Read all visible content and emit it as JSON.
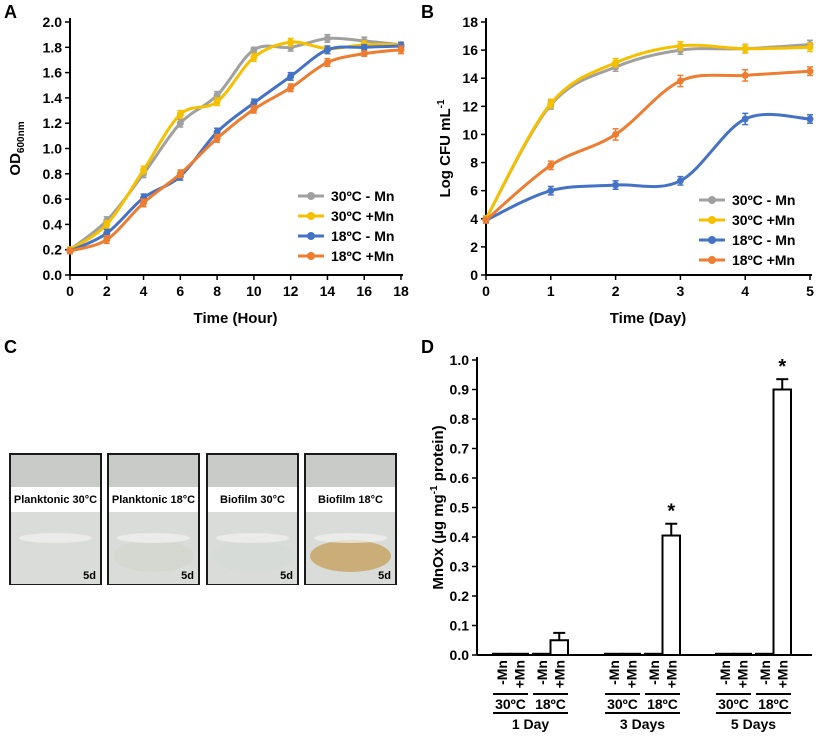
{
  "panels": {
    "A": "A",
    "B": "B",
    "C": "C",
    "D": "D"
  },
  "chart_data": [
    {
      "panel": "A",
      "type": "line",
      "xlabel": "Time (Hour)",
      "ylabel_main": "OD",
      "ylabel_sub": "600nm",
      "x": [
        0,
        2,
        4,
        6,
        8,
        10,
        12,
        14,
        16,
        18
      ],
      "xlim": [
        0,
        18
      ],
      "ylim": [
        0.0,
        2.0
      ],
      "xticks": [
        "0",
        "2",
        "4",
        "6",
        "8",
        "10",
        "12",
        "14",
        "16",
        "18"
      ],
      "yticks": [
        "0.0",
        "0.2",
        "0.4",
        "0.6",
        "0.8",
        "1.0",
        "1.2",
        "1.4",
        "1.6",
        "1.8",
        "2.0"
      ],
      "legend": [
        "30ºC - Mn",
        "30ºC +Mn",
        "18ºC - Mn",
        "18ºC +Mn"
      ],
      "legend_position": "bottom-right",
      "series": [
        {
          "name": "30ºC - Mn",
          "color": "#a0a0a0",
          "values": [
            0.2,
            0.43,
            0.8,
            1.2,
            1.42,
            1.78,
            1.8,
            1.87,
            1.85,
            1.82
          ],
          "err": [
            0.02,
            0.03,
            0.03,
            0.03,
            0.03,
            0.02,
            0.03,
            0.03,
            0.03,
            0.02
          ]
        },
        {
          "name": "30ºC +Mn",
          "color": "#f5c000",
          "values": [
            0.2,
            0.4,
            0.83,
            1.27,
            1.37,
            1.72,
            1.84,
            1.79,
            1.82,
            1.82
          ],
          "err": [
            0.02,
            0.03,
            0.03,
            0.03,
            0.03,
            0.03,
            0.03,
            0.02,
            0.03,
            0.02
          ]
        },
        {
          "name": "18ºC - Mn",
          "color": "#4472c4",
          "values": [
            0.19,
            0.33,
            0.61,
            0.78,
            1.13,
            1.36,
            1.57,
            1.78,
            1.8,
            1.81
          ],
          "err": [
            0.02,
            0.03,
            0.03,
            0.03,
            0.03,
            0.03,
            0.03,
            0.03,
            0.02,
            0.03
          ]
        },
        {
          "name": "18ºC +Mn",
          "color": "#ed7d31",
          "values": [
            0.19,
            0.28,
            0.57,
            0.8,
            1.08,
            1.31,
            1.48,
            1.68,
            1.75,
            1.78
          ],
          "err": [
            0.02,
            0.03,
            0.03,
            0.03,
            0.03,
            0.03,
            0.03,
            0.03,
            0.02,
            0.03
          ]
        }
      ]
    },
    {
      "panel": "B",
      "type": "line",
      "xlabel": "Time (Day)",
      "ylabel_main": "Log CFU mL",
      "ylabel_sup": "-1",
      "x": [
        0,
        1,
        2,
        3,
        4,
        5
      ],
      "xlim": [
        0,
        5
      ],
      "ylim": [
        0,
        18
      ],
      "xticks": [
        "0",
        "1",
        "2",
        "3",
        "4",
        "5"
      ],
      "yticks": [
        "0",
        "2",
        "4",
        "6",
        "8",
        "10",
        "12",
        "14",
        "16",
        "18"
      ],
      "legend": [
        "30ºC - Mn",
        "30ºC +Mn",
        "18ºC - Mn",
        "18ºC +Mn"
      ],
      "legend_position": "bottom-right",
      "series": [
        {
          "name": "30ºC - Mn",
          "color": "#a0a0a0",
          "values": [
            4.0,
            12.1,
            14.8,
            16.0,
            16.1,
            16.4
          ],
          "err": [
            0.2,
            0.3,
            0.3,
            0.3,
            0.3,
            0.3
          ]
        },
        {
          "name": "30ºC +Mn",
          "color": "#f5c000",
          "values": [
            4.0,
            12.2,
            15.1,
            16.3,
            16.1,
            16.2
          ],
          "err": [
            0.2,
            0.3,
            0.3,
            0.3,
            0.3,
            0.3
          ]
        },
        {
          "name": "18ºC - Mn",
          "color": "#4472c4",
          "values": [
            3.9,
            6.0,
            6.4,
            6.7,
            11.1,
            11.1
          ],
          "err": [
            0.2,
            0.3,
            0.3,
            0.3,
            0.4,
            0.3
          ]
        },
        {
          "name": "18ºC +Mn",
          "color": "#ed7d31",
          "values": [
            3.9,
            7.8,
            10.0,
            13.8,
            14.2,
            14.5
          ],
          "err": [
            0.2,
            0.3,
            0.4,
            0.4,
            0.4,
            0.3
          ]
        }
      ]
    },
    {
      "panel": "D",
      "type": "bar",
      "ylabel_pre": "MnOx (",
      "ylabel_mu": "µ",
      "ylabel_mid": "g mg",
      "ylabel_sup": "-1",
      "ylabel_post": " protein)",
      "ylim": [
        0.0,
        1.0
      ],
      "yticks": [
        "0.0",
        "0.1",
        "0.2",
        "0.3",
        "0.4",
        "0.5",
        "0.6",
        "0.7",
        "0.8",
        "0.9",
        "1.0"
      ],
      "significance_mark": "*",
      "groups": [
        {
          "label": "1 Day",
          "temps": [
            {
              "label": "30ºC",
              "bars": [
                {
                  "label": "-Mn",
                  "value": 0.0,
                  "err": 0
                },
                {
                  "label": "+Mn",
                  "value": 0.0,
                  "err": 0
                }
              ]
            },
            {
              "label": "18ºC",
              "bars": [
                {
                  "label": "-Mn",
                  "value": 0.0,
                  "err": 0
                },
                {
                  "label": "+Mn",
                  "value": 0.05,
                  "err": 0.025
                }
              ]
            }
          ]
        },
        {
          "label": "3 Days",
          "temps": [
            {
              "label": "30ºC",
              "bars": [
                {
                  "label": "-Mn",
                  "value": 0.0,
                  "err": 0
                },
                {
                  "label": "+Mn",
                  "value": 0.0,
                  "err": 0
                }
              ]
            },
            {
              "label": "18ºC",
              "bars": [
                {
                  "label": "-Mn",
                  "value": 0.0,
                  "err": 0
                },
                {
                  "label": "+Mn",
                  "value": 0.405,
                  "err": 0.04,
                  "sig": true
                }
              ]
            }
          ]
        },
        {
          "label": "5 Days",
          "temps": [
            {
              "label": "30ºC",
              "bars": [
                {
                  "label": "-Mn",
                  "value": 0.0,
                  "err": 0
                },
                {
                  "label": "+Mn",
                  "value": 0.0,
                  "err": 0
                }
              ]
            },
            {
              "label": "18ºC",
              "bars": [
                {
                  "label": "-Mn",
                  "value": 0.0,
                  "err": 0
                },
                {
                  "label": "+Mn",
                  "value": 0.9,
                  "err": 0.035,
                  "sig": true
                }
              ]
            }
          ]
        }
      ]
    }
  ],
  "photo": {
    "panel": "C",
    "day_label": "5d",
    "items": [
      {
        "caption": "Planktonic 30°C",
        "liquid_color": "#d8dcd7"
      },
      {
        "caption": "Planktonic 18°C",
        "liquid_color": "#d4d6cf"
      },
      {
        "caption": "Biofilm 30°C",
        "liquid_color": "#d6dad6"
      },
      {
        "caption": "Biofilm 18°C",
        "liquid_color": "#c9a86c"
      }
    ]
  }
}
